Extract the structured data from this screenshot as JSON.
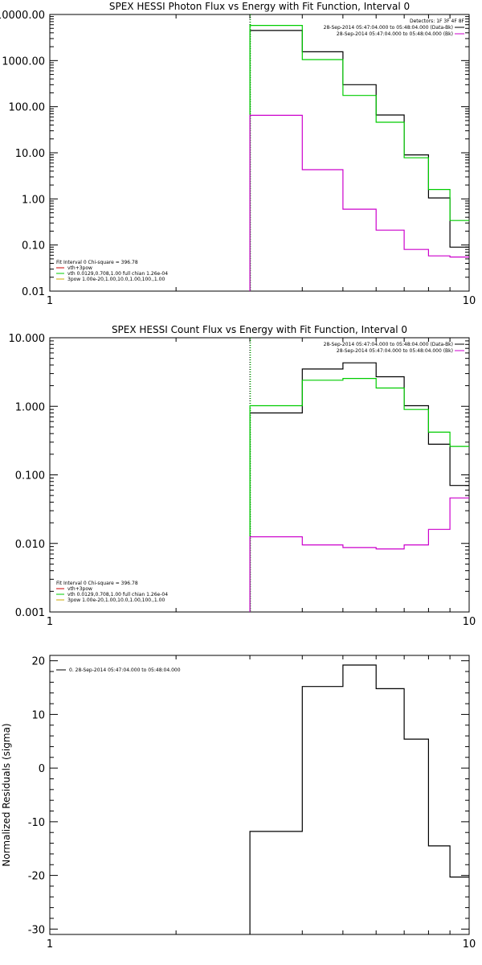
{
  "chart_data": [
    {
      "type": "line",
      "title": "SPEX HESSI Photon Flux vs Energy with Fit Function, Interval 0",
      "xscale": "log",
      "yscale": "log",
      "xlim": [
        1,
        10
      ],
      "ylim": [
        0.01,
        10000
      ],
      "xtick_labels": [
        "1",
        "10"
      ],
      "ytick_values": [
        0.01,
        0.1,
        1,
        10,
        100,
        1000,
        10000
      ],
      "ytick_labels": [
        "0.01",
        "0.10",
        "1.00",
        "10.00",
        "100.00",
        "1000.00",
        "10000.00"
      ],
      "energy_edges": [
        3.0,
        4.0,
        5.0,
        6.0,
        7.0,
        8.0,
        9.0,
        10.0
      ],
      "vline_x": 3.0,
      "series": [
        {
          "color": "#000000",
          "values": [
            4500,
            1550,
            300,
            66,
            9,
            1.05,
            0.09
          ]
        },
        {
          "color": "#00cc00",
          "values": [
            5800,
            1050,
            175,
            46,
            7.8,
            1.6,
            0.34
          ]
        },
        {
          "color": "#cc00cc",
          "values": [
            65,
            4.3,
            0.6,
            0.21,
            0.08,
            0.058,
            0.055
          ]
        }
      ],
      "legend_top": {
        "header": "Detectors: 1F 3F 4F 8F",
        "items": [
          {
            "text": "28-Sep-2014 05:47:04.000 to 05:48:04.000 (Data-Bk)",
            "color": "#000000"
          },
          {
            "text": "28-Sep-2014 05:47:04.000 to 05:48:04.000 (Bk)",
            "color": "#cc00cc"
          }
        ]
      },
      "legend_bottom": {
        "header": "Fit Interval  0   Chi-square = 396.78",
        "items": [
          {
            "text": "vth+3pow",
            "color": "#cc0000"
          },
          {
            "text": "vth 0.0129,0.708,1.00  full chian 1.26e-04",
            "color": "#00cc00"
          },
          {
            "text": "3pow 1.00e-20,1.00,10.0,1.00,100.,1.00",
            "color": "#ccaa00"
          }
        ]
      }
    },
    {
      "type": "line",
      "title": "SPEX HESSI Count Flux vs Energy with Fit Function, Interval 0",
      "xscale": "log",
      "yscale": "log",
      "xlim": [
        1,
        10
      ],
      "ylim": [
        0.001,
        10
      ],
      "xtick_labels": [
        "1",
        "10"
      ],
      "ytick_values": [
        0.001,
        0.01,
        0.1,
        1,
        10
      ],
      "ytick_labels": [
        "0.001",
        "0.010",
        "0.100",
        "1.000",
        "10.000"
      ],
      "energy_edges": [
        3.0,
        4.0,
        5.0,
        6.0,
        7.0,
        8.0,
        9.0,
        10.0
      ],
      "vline_x": 3.0,
      "series": [
        {
          "color": "#000000",
          "values": [
            0.8,
            3.5,
            4.3,
            2.7,
            1.02,
            0.28,
            0.07
          ]
        },
        {
          "color": "#00cc00",
          "values": [
            1.02,
            2.4,
            2.55,
            1.85,
            0.9,
            0.42,
            0.26
          ]
        },
        {
          "color": "#cc00cc",
          "values": [
            0.0125,
            0.0095,
            0.0087,
            0.0083,
            0.0095,
            0.016,
            0.046
          ]
        }
      ],
      "legend_top": {
        "header": "",
        "items": [
          {
            "text": "28-Sep-2014 05:47:04.000 to 05:48:04.000 (Data-Bk)",
            "color": "#000000"
          },
          {
            "text": "28-Sep-2014 05:47:04.000 to 05:48:04.000 (Bk)",
            "color": "#cc00cc"
          }
        ]
      },
      "legend_bottom": {
        "header": "Fit Interval  0   Chi-square = 396.78",
        "items": [
          {
            "text": "vth+3pow",
            "color": "#cc0000"
          },
          {
            "text": "vth 0.0129,0.708,1.00  full chian 1.26e-04",
            "color": "#00cc00"
          },
          {
            "text": "3pow 1.00e-20,1.00,10.0,1.00,100.,1.00",
            "color": "#ccaa00"
          }
        ]
      }
    },
    {
      "type": "line",
      "title": "",
      "ylabel": "Normalized Residuals (sigma)",
      "xscale": "log",
      "yscale": "linear",
      "xlim": [
        1,
        10
      ],
      "ylim": [
        -31,
        21
      ],
      "xtick_labels": [
        "1",
        "10"
      ],
      "ytick_values": [
        -30,
        -20,
        -10,
        0,
        10,
        20
      ],
      "ytick_labels": [
        "-30",
        "-20",
        "-10",
        "0",
        "10",
        "20"
      ],
      "energy_edges": [
        3.0,
        4.0,
        5.0,
        6.0,
        7.0,
        8.0,
        9.0,
        10.0
      ],
      "series": [
        {
          "color": "#000000",
          "values": [
            -11.8,
            15.2,
            19.2,
            14.8,
            5.4,
            -14.5,
            -20.3
          ]
        }
      ],
      "legend_top": {
        "header": "",
        "items": [
          {
            "text": "0. 28-Sep-2014 05:47:04.000 to 05:48:04.000",
            "color": "#000000"
          }
        ]
      }
    }
  ]
}
